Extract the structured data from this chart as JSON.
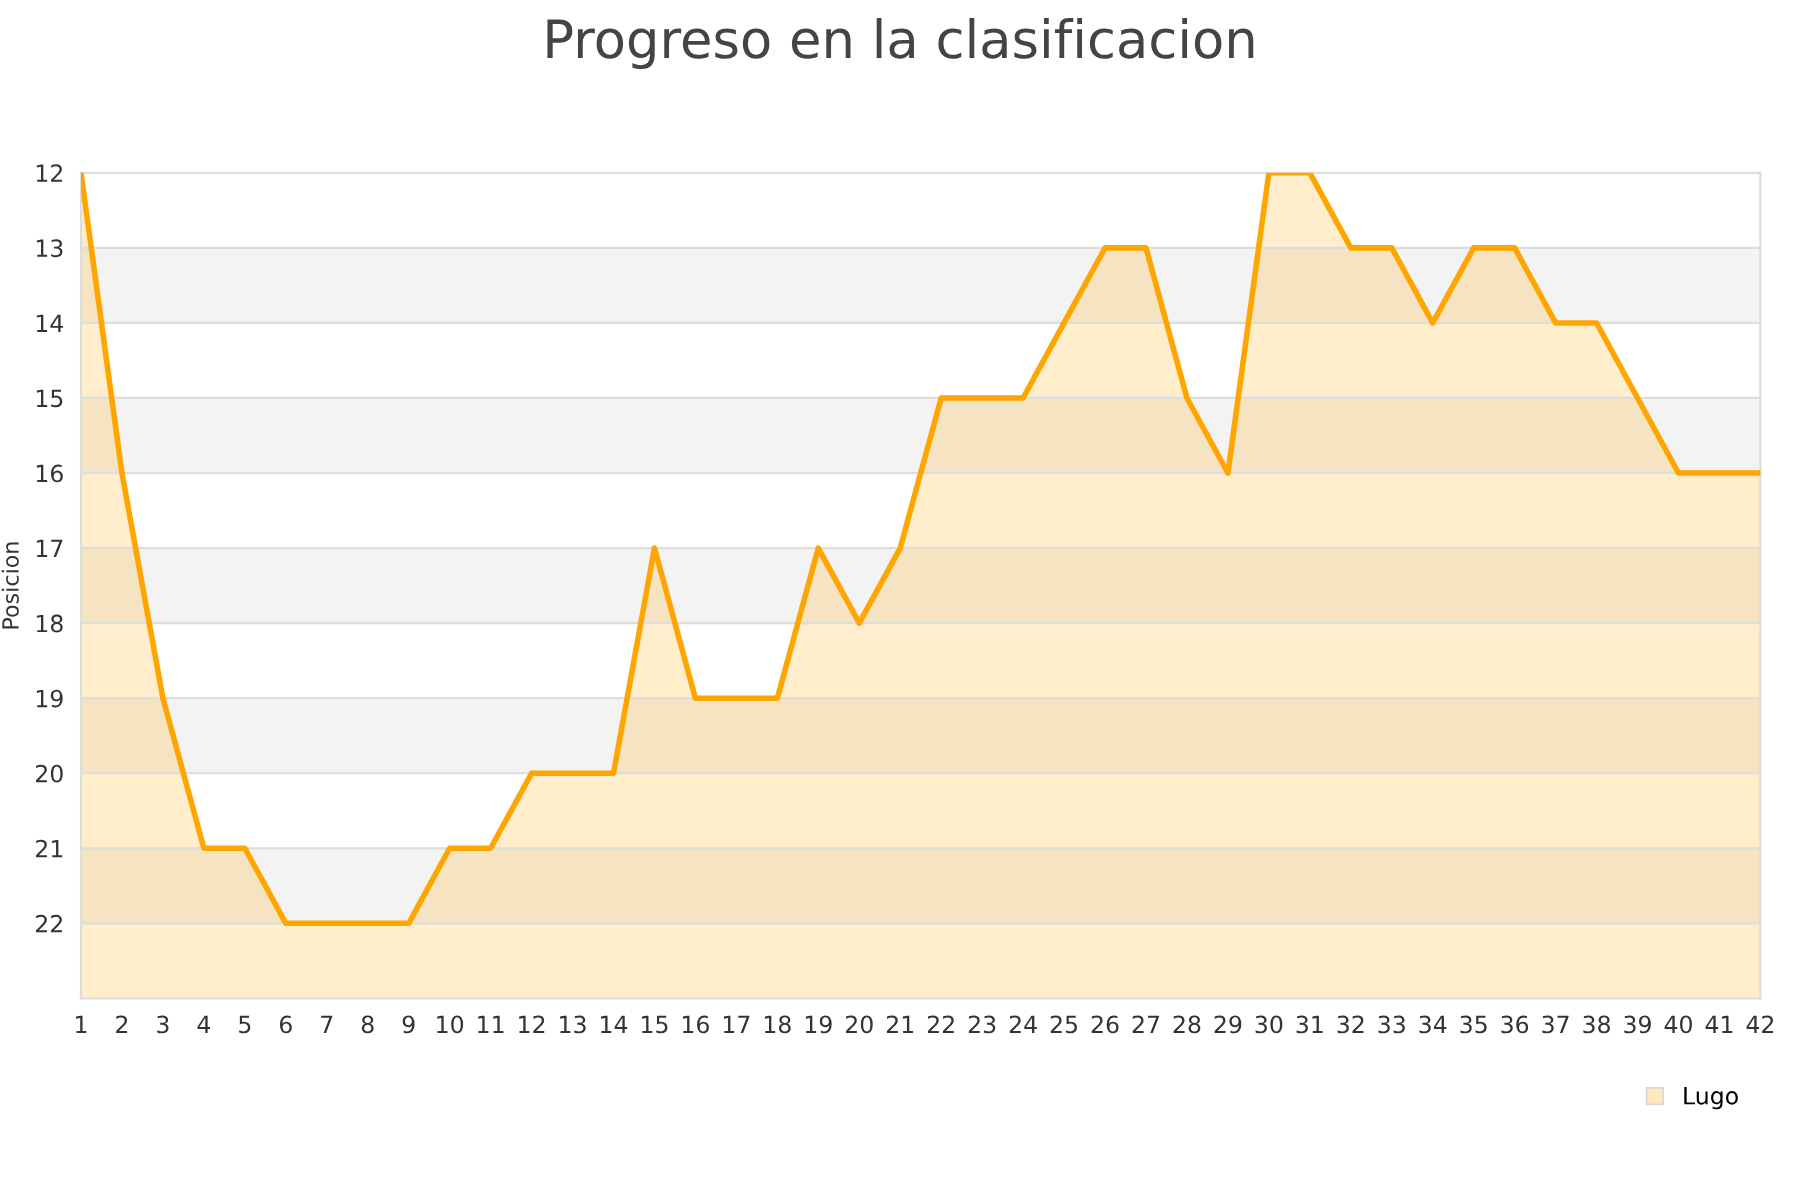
{
  "chart_data": {
    "type": "area",
    "title": "Progreso en la clasificacion",
    "ylabel": "Posicion",
    "x": [
      1,
      2,
      3,
      4,
      5,
      6,
      7,
      8,
      9,
      10,
      11,
      12,
      13,
      14,
      15,
      16,
      17,
      18,
      19,
      20,
      21,
      22,
      23,
      24,
      25,
      26,
      27,
      28,
      29,
      30,
      31,
      32,
      33,
      34,
      35,
      36,
      37,
      38,
      39,
      40,
      41,
      42
    ],
    "series": [
      {
        "name": "Lugo",
        "color": "#ffa500",
        "values": [
          12,
          16,
          19,
          21,
          21,
          22,
          22,
          22,
          22,
          21,
          21,
          20,
          20,
          20,
          17,
          19,
          19,
          19,
          17,
          18,
          17,
          15,
          15,
          15,
          14,
          13,
          13,
          15,
          16,
          12,
          12,
          13,
          13,
          14,
          13,
          13,
          14,
          14,
          15,
          16,
          16,
          16
        ]
      }
    ],
    "xlim": [
      1,
      42
    ],
    "xticks": [
      1,
      2,
      3,
      4,
      5,
      6,
      7,
      8,
      9,
      10,
      11,
      12,
      13,
      14,
      15,
      16,
      17,
      18,
      19,
      20,
      21,
      22,
      23,
      24,
      25,
      26,
      27,
      28,
      29,
      30,
      31,
      32,
      33,
      34,
      35,
      36,
      37,
      38,
      39,
      40,
      41,
      42
    ],
    "ylim": [
      23,
      12
    ],
    "yticks": [
      12,
      13,
      14,
      15,
      16,
      17,
      18,
      19,
      20,
      21,
      22
    ],
    "grid": "y",
    "legend": "bottom right",
    "marker": "none",
    "line_style": "solid"
  }
}
